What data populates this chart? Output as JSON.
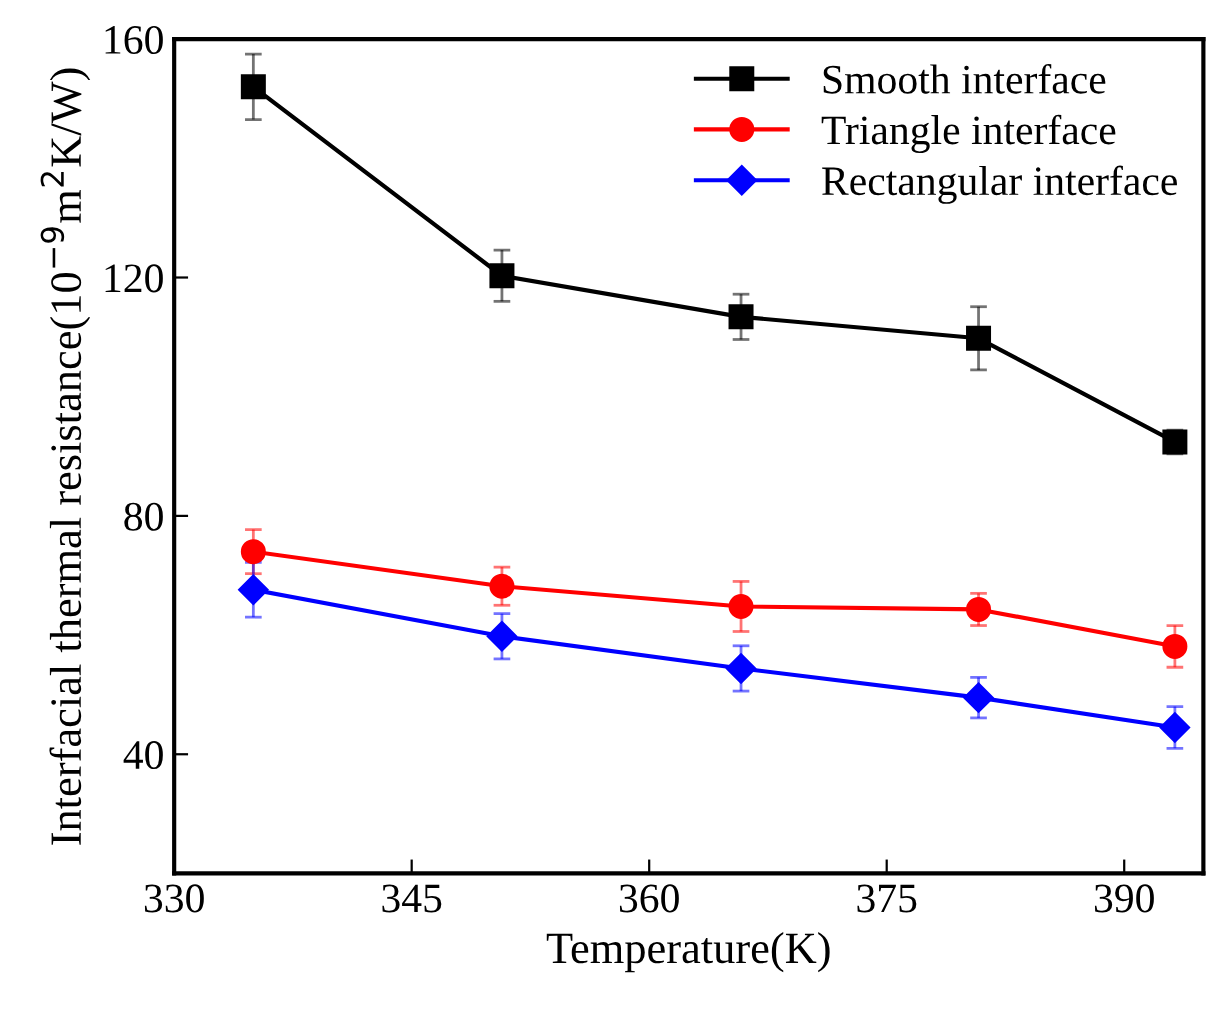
{
  "chart_data": {
    "type": "line",
    "xlabel": "Temperature(K)",
    "ylabel": "Interfacial thermal resistance(10$^{−9}$m$^{2}$K/W)",
    "x": [
      335,
      350.7,
      365.8,
      380.8,
      393.2
    ],
    "series": [
      {
        "name": "Smooth interface",
        "color": "#000000",
        "marker": "square",
        "values": [
          152.0,
          120.3,
          113.4,
          109.8,
          92.4
        ],
        "errors": [
          5.5,
          4.3,
          3.8,
          5.3,
          2
        ]
      },
      {
        "name": "Triangle interface",
        "color": "#ff0000",
        "marker": "circle",
        "values": [
          74.0,
          68.2,
          64.8,
          64.3,
          58.1
        ],
        "errors": [
          3.7,
          3.2,
          4.2,
          2.7,
          3.5
        ]
      },
      {
        "name": "Rectangular interface",
        "color": "#0000ff",
        "marker": "diamond",
        "values": [
          67.6,
          59.8,
          54.4,
          49.5,
          44.5
        ],
        "errors": [
          4.6,
          3.8,
          3.8,
          3.4,
          3.5
        ]
      }
    ],
    "xlim": [
      330,
      395
    ],
    "ylim": [
      20,
      160
    ],
    "xticks": [
      330,
      345,
      360,
      375,
      390
    ],
    "yticks": [
      40,
      80,
      120,
      160
    ],
    "grid": false,
    "legend": "top right",
    "line_style": "solid"
  }
}
